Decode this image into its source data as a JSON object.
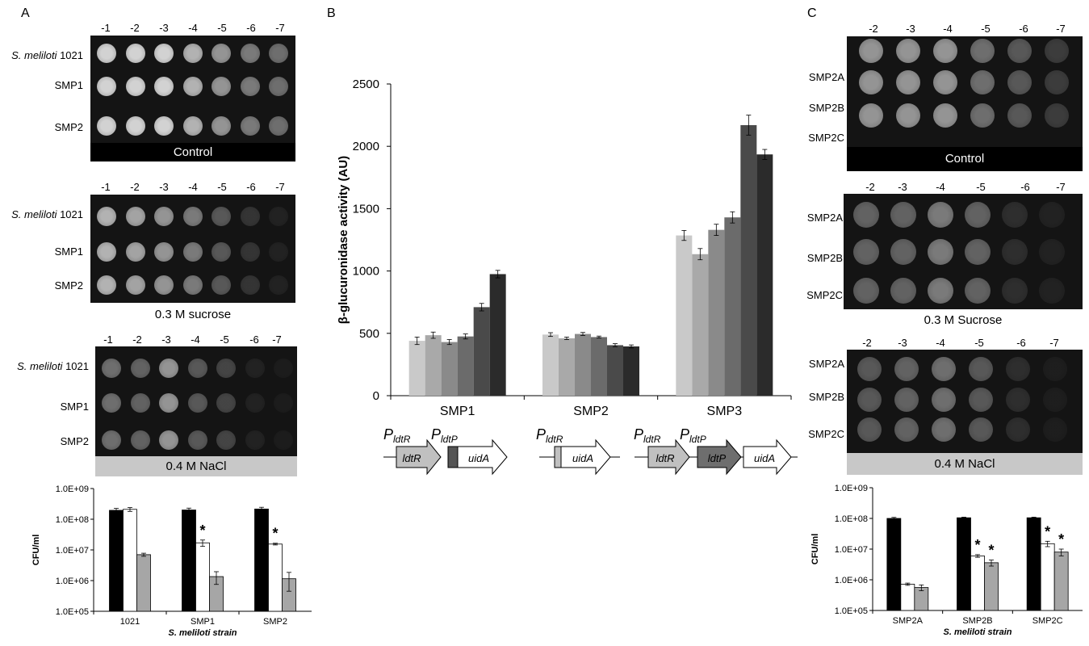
{
  "panel_letters": [
    "A",
    "B",
    "C"
  ],
  "panelA": {
    "plates": [
      {
        "dilutions": [
          "-1",
          "-2",
          "-3",
          "-4",
          "-5",
          "-6",
          "-7"
        ],
        "rows": [
          {
            "italic": "S. meliloti",
            "plain": " 1021"
          },
          {
            "italic": "",
            "plain": "SMP1"
          },
          {
            "italic": "",
            "plain": "SMP2"
          }
        ],
        "label": "Control"
      },
      {
        "dilutions": [
          "-1",
          "-2",
          "-3",
          "-4",
          "-5",
          "-6",
          "-7"
        ],
        "rows": [
          {
            "italic": "S. meliloti",
            "plain": " 1021"
          },
          {
            "italic": "",
            "plain": "SMP1"
          },
          {
            "italic": "",
            "plain": "SMP2"
          }
        ],
        "label": "0.3 M sucrose"
      },
      {
        "dilutions": [
          "-1",
          "-2",
          "-3",
          "-4",
          "-5",
          "-6",
          "-7"
        ],
        "rows": [
          {
            "italic": "S. meliloti",
            "plain": " 1021"
          },
          {
            "italic": "",
            "plain": "SMP1"
          },
          {
            "italic": "",
            "plain": "SMP2"
          }
        ],
        "label": "0.4 M NaCl"
      }
    ]
  },
  "panelC": {
    "plates": [
      {
        "dilutions": [
          "-2",
          "-3",
          "-4",
          "-5",
          "-6",
          "-7"
        ],
        "rows": [
          "SMP2A",
          "SMP2B",
          "SMP2C"
        ],
        "label": "Control"
      },
      {
        "dilutions": [
          "-2",
          "-3",
          "-4",
          "-5",
          "-6",
          "-7"
        ],
        "rows": [
          "SMP2A",
          "SMP2B",
          "SMP2C"
        ],
        "label": "0.3 M Sucrose"
      },
      {
        "dilutions": [
          "-2",
          "-3",
          "-4",
          "-5",
          "-6",
          "-7"
        ],
        "rows": [
          "SMP2A",
          "SMP2B",
          "SMP2C"
        ],
        "label": "0.4 M NaCl"
      }
    ]
  },
  "panelB_constructs": {
    "smp1": {
      "p1": "P",
      "p1sub": "ldtR",
      "p2": "P",
      "p2sub": "ldtP",
      "g1": "ldtR",
      "g2": "uidA"
    },
    "smp2": {
      "p1": "P",
      "p1sub": "ldtR",
      "g1": "uidA"
    },
    "smp3": {
      "p1": "P",
      "p1sub": "ldtR",
      "p2": "P",
      "p2sub": "ldtP",
      "g1": "ldtR",
      "g2": "ldtP",
      "g3": "uidA"
    }
  },
  "colors": {
    "bar_shades": [
      "#c9c9c9",
      "#a9a9a9",
      "#8a8a8a",
      "#6b6b6b",
      "#4a4a4a",
      "#2b2b2b"
    ],
    "cfu_series": [
      "#000000",
      "#ffffff",
      "#a6a6a6"
    ]
  },
  "chart_data": [
    {
      "id": "panelA_cfu",
      "type": "bar",
      "scale": "log",
      "ylabel": "CFU/ml",
      "xlabel": "S. meliloti strain",
      "categories": [
        "1021",
        "SMP1",
        "SMP2"
      ],
      "y_ticks": [
        "1.0E+05",
        "1.0E+06",
        "1.0E+07",
        "1.0E+08",
        "1.0E+09"
      ],
      "ylim": [
        100000,
        1000000000
      ],
      "series": [
        {
          "values": [
            195000000,
            200000000,
            215000000
          ],
          "errors": [
            30000000,
            30000000,
            30000000
          ]
        },
        {
          "values": [
            210000000,
            17000000,
            15500000
          ],
          "errors": [
            30000000,
            4000000,
            1000000
          ]
        },
        {
          "values": [
            7000000,
            1350000,
            1150000
          ],
          "errors": [
            800000,
            600000,
            700000
          ]
        }
      ],
      "annotations": [
        {
          "category": 1,
          "series": 1,
          "text": "*"
        },
        {
          "category": 2,
          "series": 1,
          "text": "*"
        }
      ]
    },
    {
      "id": "panelB_gus",
      "type": "bar",
      "scale": "linear",
      "ylabel": "β-glucuronidase  activity (AU)",
      "categories": [
        "SMP1",
        "SMP2",
        "SMP3"
      ],
      "y_ticks": [
        "0",
        "500",
        "1000",
        "1500",
        "2000",
        "2500"
      ],
      "ylim": [
        0,
        2500
      ],
      "groups": [
        {
          "values": [
            440,
            485,
            430,
            475,
            710,
            975
          ],
          "errors": [
            30,
            25,
            20,
            20,
            30,
            30
          ]
        },
        {
          "values": [
            490,
            460,
            495,
            470,
            405,
            395
          ],
          "errors": [
            15,
            10,
            12,
            8,
            12,
            12
          ]
        },
        {
          "values": [
            1285,
            1135,
            1330,
            1430,
            2170,
            1935
          ],
          "errors": [
            40,
            45,
            45,
            45,
            80,
            40
          ]
        }
      ]
    },
    {
      "id": "panelC_cfu",
      "type": "bar",
      "scale": "log",
      "ylabel": "CFU/ml",
      "xlabel": "S. meliloti strain",
      "categories": [
        "SMP2A",
        "SMP2B",
        "SMP2C"
      ],
      "y_ticks": [
        "1.0E+05",
        "1.0E+06",
        "1.0E+07",
        "1.0E+08",
        "1.0E+09"
      ],
      "ylim": [
        100000,
        1000000000
      ],
      "series": [
        {
          "values": [
            100000000,
            105000000,
            105000000
          ],
          "errors": [
            8000000,
            5000000,
            5000000
          ]
        },
        {
          "values": [
            720000,
            6000000,
            15000000
          ],
          "errors": [
            60000,
            600000,
            3000000
          ]
        },
        {
          "values": [
            560000,
            3600000,
            8000000
          ],
          "errors": [
            120000,
            800000,
            2000000
          ]
        }
      ],
      "annotations": [
        {
          "category": 1,
          "series": 1,
          "text": "*"
        },
        {
          "category": 1,
          "series": 2,
          "text": "*"
        },
        {
          "category": 2,
          "series": 1,
          "text": "*"
        },
        {
          "category": 2,
          "series": 2,
          "text": "*"
        }
      ]
    }
  ]
}
